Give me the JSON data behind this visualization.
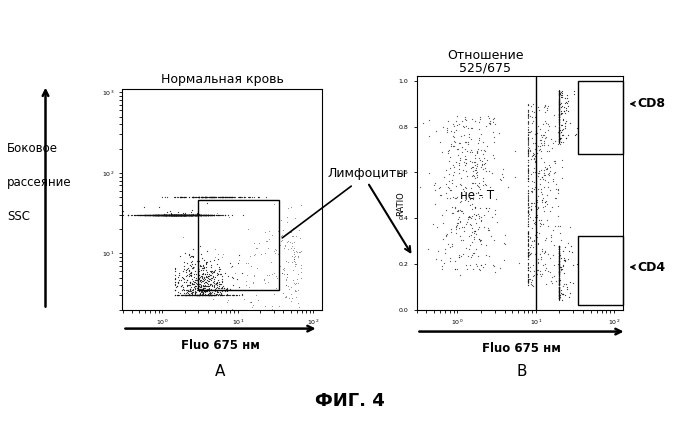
{
  "title": "ФИГ. 4",
  "plot_A_title": "Нормальная кровь",
  "plot_A_xlabel": "Fluo 675 нм",
  "plot_A_ylabel_line1": "Боковое",
  "plot_A_ylabel_line2": "рассеяние",
  "plot_A_ylabel_line3": "SSC",
  "plot_A_label": "А",
  "plot_B_title_line1": "Отношение",
  "plot_B_title_line2": "525/675",
  "plot_B_xlabel": "Fluo 675 нм",
  "plot_B_ylabel": "RATIO",
  "plot_B_label": "В",
  "lymphocytes_label": "Лимфоциты",
  "not_T_label": "не - Т",
  "CD8_label": "CD8",
  "CD4_label": "CD4",
  "bg_color": "#ffffff",
  "plot_bg": "#ffffff",
  "dot_color": "#111111",
  "arrow_color": "#000000"
}
